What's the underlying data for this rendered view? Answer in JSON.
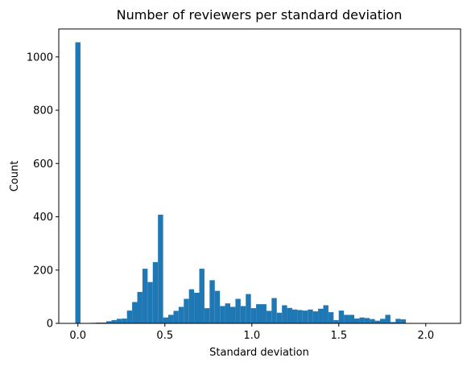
{
  "chart_data": {
    "type": "bar",
    "title": "Number of reviewers per standard deviation",
    "xlabel": "Standard deviation",
    "ylabel": "Count",
    "xlim": [
      -0.11,
      2.2
    ],
    "ylim": [
      0,
      1105
    ],
    "xticks": [
      "0.0",
      "0.5",
      "1.0",
      "1.5",
      "2.0"
    ],
    "yticks": [
      "0",
      "200",
      "400",
      "600",
      "800",
      "1000"
    ],
    "grid": false,
    "color": "#1f77b4",
    "bin_width": 0.0297,
    "bin_start": -0.015,
    "values": [
      1055,
      0,
      0,
      2,
      3,
      3,
      8,
      12,
      17,
      18,
      48,
      80,
      118,
      205,
      155,
      230,
      408,
      22,
      32,
      47,
      62,
      92,
      128,
      115,
      205,
      57,
      162,
      122,
      65,
      75,
      62,
      92,
      65,
      110,
      57,
      72,
      72,
      47,
      95,
      40,
      68,
      58,
      52,
      50,
      48,
      52,
      45,
      55,
      68,
      42,
      12,
      48,
      32,
      32,
      18,
      22,
      20,
      16,
      10,
      17,
      32,
      5,
      17,
      15
    ]
  }
}
